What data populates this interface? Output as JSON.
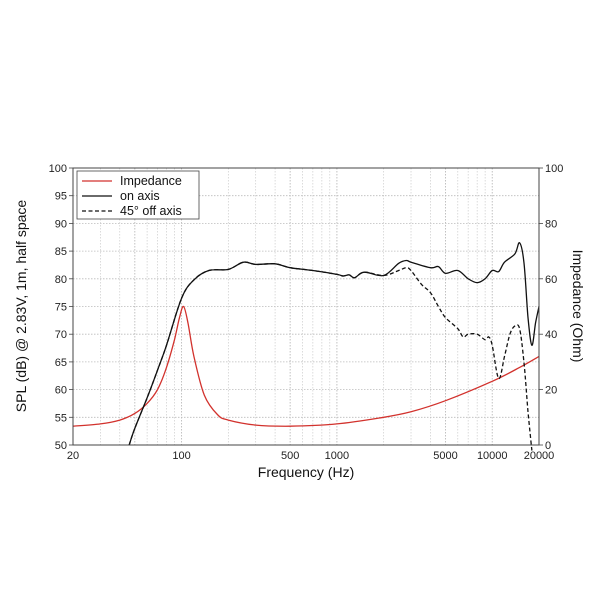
{
  "chart_data": {
    "type": "line",
    "title": "",
    "xlabel": "Frequency (Hz)",
    "ylabel": "SPL (dB) @ 2.83V, 1m, half space",
    "y2label": "Impedance (Ohm)",
    "xscale": "log",
    "xlim": [
      20,
      20000
    ],
    "ylim": [
      50,
      100
    ],
    "y2lim": [
      0,
      100
    ],
    "grid": true,
    "legend_position": "top-left",
    "xticks": [
      "20",
      "100",
      "500",
      "1000",
      "5000",
      "10000",
      "20000"
    ],
    "xtick_values": [
      20,
      100,
      500,
      1000,
      5000,
      10000,
      20000
    ],
    "yticks": [
      "50",
      "55",
      "60",
      "65",
      "70",
      "75",
      "80",
      "85",
      "90",
      "95",
      "100"
    ],
    "y2ticks": [
      "0",
      "20",
      "40",
      "60",
      "80",
      "100"
    ],
    "series": [
      {
        "name": "Impedance",
        "axis": "right",
        "color": "#d2322d",
        "style": "solid",
        "x": [
          20,
          30,
          40,
          50,
          60,
          70,
          80,
          90,
          97,
          103,
          110,
          120,
          140,
          170,
          200,
          300,
          500,
          1000,
          2000,
          3000,
          5000,
          10000,
          15000,
          20000
        ],
        "y": [
          6.8,
          7.6,
          9,
          11.4,
          15,
          20,
          28,
          38,
          46,
          50,
          44,
          32,
          18,
          11,
          9,
          7.2,
          6.8,
          7.6,
          10,
          12,
          16,
          23,
          28,
          32
        ]
      },
      {
        "name": "on axis",
        "axis": "left",
        "color": "#111111",
        "style": "solid",
        "x": [
          46,
          50,
          60,
          70,
          80,
          100,
          120,
          150,
          200,
          250,
          300,
          400,
          500,
          700,
          1000,
          1100,
          1200,
          1300,
          1500,
          2000,
          2500,
          2800,
          3000,
          4000,
          4500,
          5000,
          6000,
          7000,
          8000,
          9000,
          10000,
          11000,
          12000,
          14000,
          15000,
          16000,
          17000,
          18000,
          19000,
          20000
        ],
        "y": [
          50,
          53,
          58.5,
          63.5,
          68,
          76.5,
          79.8,
          81.5,
          81.7,
          83,
          82.6,
          82.7,
          82,
          81.5,
          80.8,
          80.5,
          80.7,
          80.2,
          81.2,
          80.6,
          82.8,
          83.3,
          83,
          82,
          82.2,
          81,
          81.5,
          80,
          79.3,
          80,
          81.5,
          81.3,
          83,
          84.5,
          86.5,
          83,
          73,
          68,
          72,
          75
        ]
      },
      {
        "name": "45° off axis",
        "axis": "left",
        "color": "#111111",
        "style": "dashed",
        "x": [
          46,
          50,
          60,
          70,
          80,
          100,
          120,
          150,
          200,
          250,
          300,
          400,
          500,
          700,
          1000,
          1100,
          1200,
          1300,
          1500,
          2000,
          2500,
          2800,
          3000,
          3500,
          4000,
          4500,
          5000,
          6000,
          6500,
          7000,
          8000,
          9000,
          9500,
          10000,
          11000,
          12000,
          13000,
          14000,
          15000,
          16000,
          17000,
          18000
        ],
        "y": [
          50,
          53,
          58.5,
          63.5,
          68,
          76.5,
          79.8,
          81.5,
          81.7,
          83,
          82.6,
          82.7,
          82,
          81.5,
          80.8,
          80.5,
          80.7,
          80.2,
          81.2,
          80.6,
          81.5,
          82,
          81.5,
          79,
          77.5,
          75,
          73,
          71,
          69.5,
          70,
          70,
          69,
          69.5,
          68,
          62,
          66,
          70,
          71.5,
          71,
          65,
          56,
          49
        ]
      }
    ]
  }
}
